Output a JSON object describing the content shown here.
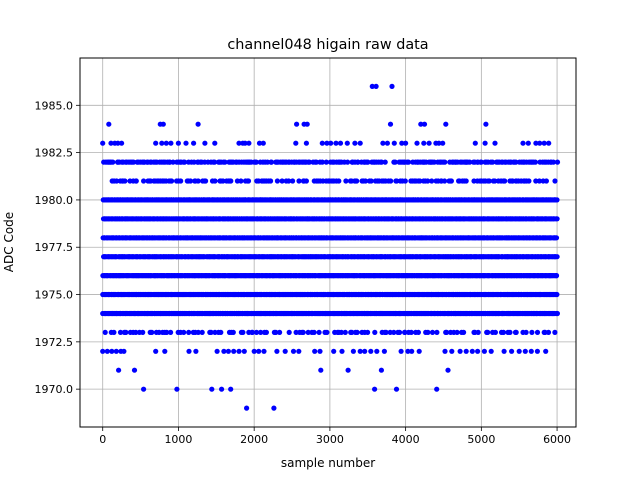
{
  "chart_data": {
    "type": "scatter",
    "title": "channel048 higain raw data",
    "xlabel": "sample number",
    "ylabel": "ADC Code",
    "xlim": [
      -300,
      6250
    ],
    "ylim": [
      1968.0,
      1987.5
    ],
    "x_ticks": [
      0,
      1000,
      2000,
      3000,
      4000,
      5000,
      6000
    ],
    "x_tick_labels": [
      "0",
      "1000",
      "2000",
      "3000",
      "4000",
      "5000",
      "6000"
    ],
    "y_ticks": [
      1970.0,
      1972.5,
      1975.0,
      1977.5,
      1980.0,
      1982.5,
      1985.0
    ],
    "y_tick_labels": [
      "1970.0",
      "1972.5",
      "1975.0",
      "1977.5",
      "1980.0",
      "1982.5",
      "1985.0"
    ],
    "grid": true,
    "marker_color": "#0000ff",
    "n_samples": 6000,
    "dense_levels": [
      1974,
      1975,
      1976,
      1977,
      1978,
      1979,
      1980
    ],
    "medium_levels": [
      1973,
      1981,
      1982
    ],
    "sparse_points": {
      "1969": [
        1900,
        2260
      ],
      "1970": [
        540,
        980,
        1440,
        1570,
        1690,
        3590,
        3880,
        4410
      ],
      "1971": [
        210,
        420,
        2880,
        3240,
        3680,
        4560
      ],
      "1972": [
        0,
        60,
        120,
        180,
        240,
        280,
        700,
        820,
        1140,
        1230,
        1510,
        1600,
        1660,
        1730,
        1800,
        1870,
        2000,
        2060,
        2130,
        2300,
        2410,
        2520,
        2590,
        2800,
        2870,
        3050,
        3160,
        3310,
        3400,
        3460,
        3540,
        3620,
        3720,
        3940,
        4030,
        4080,
        4180,
        4520,
        4610,
        4720,
        4800,
        4880,
        4950,
        5040,
        5130,
        5300,
        5400,
        5500,
        5580,
        5660,
        5740,
        5850
      ],
      "1983": [
        0,
        110,
        160,
        200,
        250,
        700,
        780,
        840,
        900,
        1000,
        1100,
        1200,
        1350,
        1480,
        1800,
        1850,
        1880,
        1930,
        2070,
        2120,
        2550,
        2690,
        2900,
        2960,
        3010,
        3080,
        3140,
        3230,
        3330,
        3400,
        3700,
        3760,
        3850,
        3950,
        4000,
        4150,
        4240,
        4310,
        4400,
        4440,
        4490,
        4920,
        5050,
        5180,
        5550,
        5620,
        5720,
        5770,
        5830,
        5890
      ],
      "1984": [
        80,
        760,
        800,
        1260,
        2560,
        2660,
        2700,
        3800,
        4200,
        4250,
        4530,
        5060
      ],
      "1986": [
        3560,
        3610,
        3820
      ]
    }
  }
}
